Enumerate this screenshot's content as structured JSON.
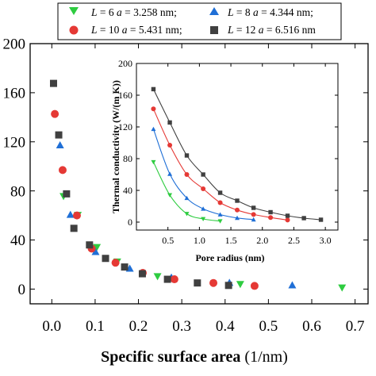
{
  "chart_data": [
    {
      "id": "main",
      "type": "scatter",
      "xlabel": "Specific surface area",
      "xunit": " (1/nm)",
      "ylabel": "",
      "xlim": [
        -0.05,
        0.73
      ],
      "ylim": [
        -12,
        200
      ],
      "xticks": [
        0.0,
        0.1,
        0.2,
        0.3,
        0.4,
        0.5,
        0.6,
        0.7
      ],
      "xtick_labels": [
        "0.0",
        "0.1",
        "0.2",
        "0.3",
        "0.4",
        "0.5",
        "0.6",
        "0.7"
      ],
      "yticks": [
        0,
        40,
        80,
        120,
        160,
        200
      ],
      "ytick_labels": [
        "0",
        "40",
        "80",
        "120",
        "160",
        "200"
      ],
      "legend_position": "top",
      "series": [
        {
          "label_var": "L",
          "label_eq": " = 6 ",
          "label_avar": "a",
          "label_aeq": " = 3.258 nm;",
          "marker": "triangle-down",
          "color": "#2ecc40",
          "points": [
            [
              0.027,
              75.7
            ],
            [
              0.06,
              60.3
            ],
            [
              0.104,
              34.1
            ],
            [
              0.151,
              22.3
            ],
            [
              0.244,
              10.4
            ],
            [
              0.435,
              4.0
            ],
            [
              0.67,
              1.2
            ]
          ]
        },
        {
          "label_var": "L",
          "label_eq": " = 8 ",
          "label_avar": "a",
          "label_aeq": " = 4.344 nm;",
          "marker": "triangle-up",
          "color": "#1f6fd6",
          "points": [
            [
              0.019,
              117.3
            ],
            [
              0.043,
              60.6
            ],
            [
              0.101,
              30.3
            ],
            [
              0.18,
              16.8
            ],
            [
              0.276,
              9.5
            ],
            [
              0.41,
              5.2
            ],
            [
              0.555,
              3.2
            ]
          ]
        },
        {
          "label_var": "L",
          "label_eq": " = 10 ",
          "label_avar": "a",
          "label_aeq": " = 5.431 nm;",
          "marker": "circle",
          "color": "#e53935",
          "points": [
            [
              0.007,
              142.7
            ],
            [
              0.025,
              97.0
            ],
            [
              0.058,
              60.0
            ],
            [
              0.092,
              33.0
            ],
            [
              0.147,
              21.5
            ],
            [
              0.21,
              13.2
            ],
            [
              0.283,
              8.0
            ],
            [
              0.373,
              5.0
            ],
            [
              0.468,
              2.6
            ]
          ]
        },
        {
          "label_var": "L",
          "label_eq": " = 12 ",
          "label_avar": "a",
          "label_aeq": " = 6.516 nm",
          "marker": "square",
          "color": "#404040",
          "points": [
            [
              0.004,
              167.6
            ],
            [
              0.016,
              125.6
            ],
            [
              0.034,
              77.6
            ],
            [
              0.051,
              49.5
            ],
            [
              0.087,
              36.0
            ],
            [
              0.124,
              25.0
            ],
            [
              0.168,
              18.0
            ],
            [
              0.209,
              12.5
            ],
            [
              0.267,
              8.0
            ],
            [
              0.336,
              5.0
            ],
            [
              0.408,
              3.0
            ]
          ]
        }
      ]
    },
    {
      "id": "inset",
      "type": "scatter",
      "xlabel": "Pore radius (nm)",
      "ylabel": "Thermal conductivity (W/(m K))",
      "xlim": [
        0,
        3.2
      ],
      "ylim": [
        -10,
        200
      ],
      "xticks": [
        0.5,
        1.0,
        1.5,
        2.0,
        2.5,
        3.0
      ],
      "xtick_labels": [
        "0.5",
        "1.0",
        "1.5",
        "2.0",
        "2.5",
        "3.0"
      ],
      "yticks": [
        0,
        40,
        80,
        120,
        160,
        200
      ],
      "ytick_labels": [
        "0",
        "40",
        "80",
        "120",
        "160",
        "200"
      ],
      "series": [
        {
          "marker": "triangle-down",
          "color": "#2ecc40",
          "points": [
            [
              0.27,
              75.7
            ],
            [
              0.53,
              34.1
            ],
            [
              0.8,
              10.5
            ],
            [
              1.06,
              4.0
            ],
            [
              1.33,
              1.2
            ]
          ]
        },
        {
          "marker": "triangle-up",
          "color": "#1f6fd6",
          "points": [
            [
              0.27,
              117.3
            ],
            [
              0.53,
              60.6
            ],
            [
              0.8,
              30.3
            ],
            [
              1.06,
              16.8
            ],
            [
              1.33,
              9.5
            ],
            [
              1.6,
              5.2
            ],
            [
              1.86,
              3.2
            ]
          ]
        },
        {
          "marker": "circle",
          "color": "#e53935",
          "points": [
            [
              0.27,
              142.7
            ],
            [
              0.53,
              97.0
            ],
            [
              0.8,
              60.0
            ],
            [
              1.06,
              42.0
            ],
            [
              1.33,
              24.5
            ],
            [
              1.6,
              15.2
            ],
            [
              1.86,
              9.6
            ],
            [
              2.13,
              5.8
            ],
            [
              2.4,
              2.6
            ]
          ]
        },
        {
          "marker": "square",
          "color": "#404040",
          "points": [
            [
              0.27,
              167.6
            ],
            [
              0.53,
              125.6
            ],
            [
              0.8,
              84.0
            ],
            [
              1.06,
              60.0
            ],
            [
              1.33,
              37.0
            ],
            [
              1.6,
              27.0
            ],
            [
              1.86,
              18.0
            ],
            [
              2.13,
              12.5
            ],
            [
              2.4,
              8.0
            ],
            [
              2.66,
              5.0
            ],
            [
              2.93,
              3.0
            ]
          ]
        }
      ]
    }
  ]
}
